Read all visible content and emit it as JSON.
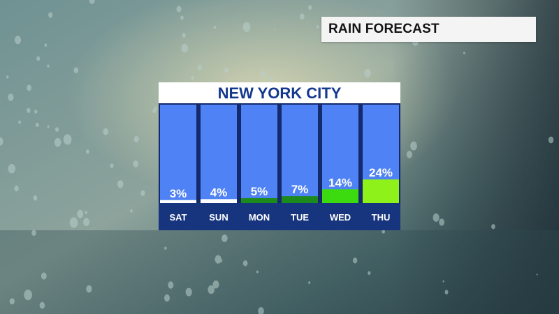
{
  "header": {
    "title": "RAIN FORECAST"
  },
  "chart_data": {
    "type": "bar",
    "title": "NEW YORK CITY",
    "categories": [
      "SAT",
      "SUN",
      "MON",
      "TUE",
      "WED",
      "THU"
    ],
    "values": [
      3,
      4,
      5,
      7,
      14,
      24
    ],
    "value_labels": [
      "3%",
      "4%",
      "5%",
      "7%",
      "14%",
      "24%"
    ],
    "ylim": [
      0,
      100
    ],
    "bar_colors": [
      "#ffffff",
      "#ffffff",
      "#1d8a1e",
      "#1d8a1e",
      "#3cdb0f",
      "#8ef21a"
    ],
    "column_background": "#4f82f4",
    "label_row_color": "#17347e",
    "grid": false
  }
}
